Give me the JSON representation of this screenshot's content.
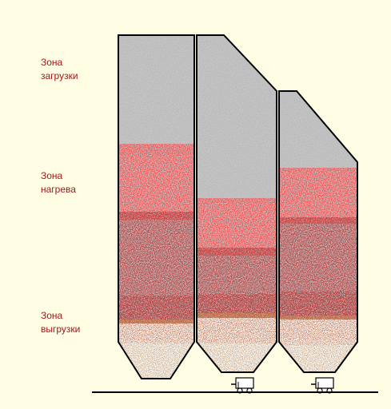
{
  "zones": {
    "loading": "Зона\nзагрузки",
    "heating": "Зона\nнагрева",
    "unloading": "Зона\nвыгрузки"
  },
  "colors": {
    "background": "#fffde4",
    "bin_fill": "#c6c6c6",
    "bin_outline": "#000000",
    "label_text": "#a11a1a",
    "loading_particles": "#7c7c7c",
    "heating_particles": "#f01818",
    "unloading_particles": "#7d0c0c",
    "bottom_particles": "#9b4a17"
  },
  "icons": {
    "cart": "cart-icon"
  }
}
